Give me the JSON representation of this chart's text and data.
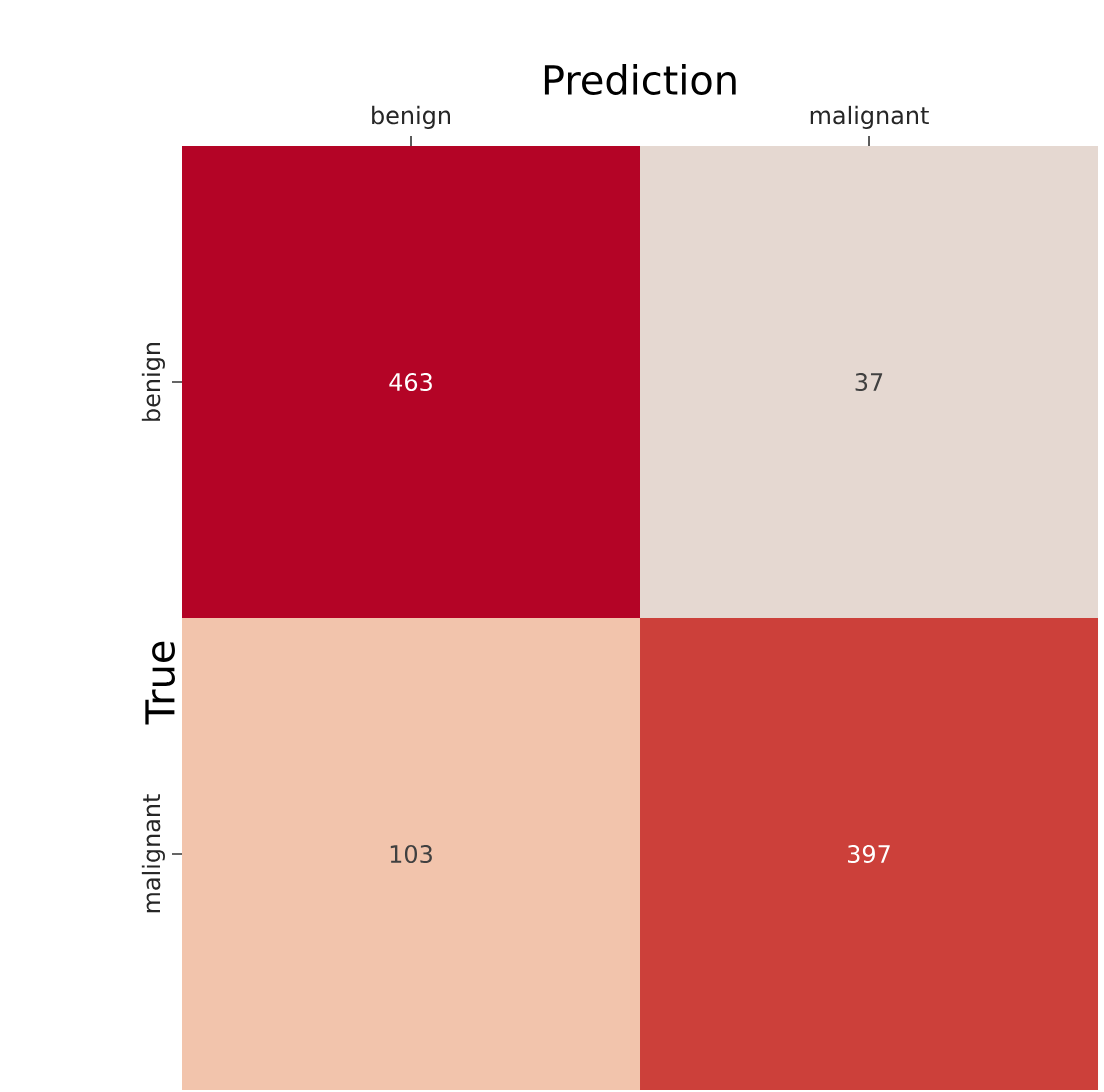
{
  "chart_data": {
    "type": "heatmap",
    "xlabel": "Prediction",
    "ylabel": "True",
    "categories": [
      "benign",
      "malignant"
    ],
    "y_categories": [
      "benign",
      "malignant"
    ],
    "cells": [
      [
        463,
        37
      ],
      [
        103,
        397
      ]
    ],
    "colors": [
      [
        "#b40426",
        "#e5d8d1"
      ],
      [
        "#f2c4ac",
        "#cc403a"
      ]
    ],
    "data_labels": true
  }
}
